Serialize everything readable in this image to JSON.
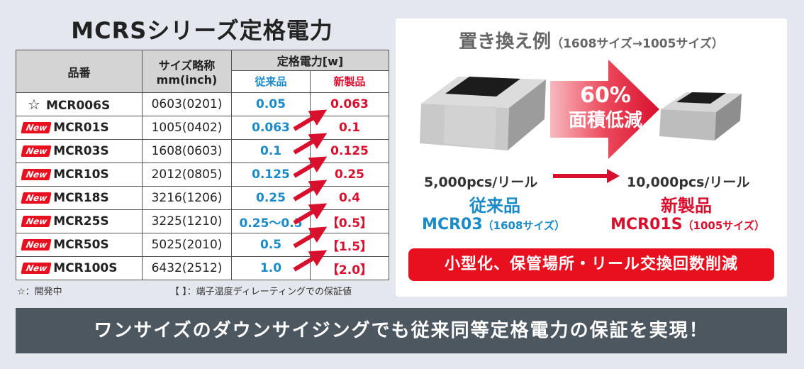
{
  "left": {
    "title": "MCRSシリーズ定格電力",
    "header": {
      "part": "品番",
      "size_line1": "サイズ略称",
      "size_line2": "mm(inch)",
      "rating": "定格電力[w]",
      "old": "従来品",
      "new": "新製品"
    },
    "new_badge": "New",
    "rows": [
      {
        "badge": "☆",
        "part": "MCR006S",
        "size": "0603(0201)",
        "old": "0.05",
        "new": "0.063"
      },
      {
        "badge": "New",
        "part": "MCR01S",
        "size": "1005(0402)",
        "old": "0.063",
        "new": "0.1"
      },
      {
        "badge": "New",
        "part": "MCR03S",
        "size": "1608(0603)",
        "old": "0.1",
        "new": "0.125"
      },
      {
        "badge": "New",
        "part": "MCR10S",
        "size": "2012(0805)",
        "old": "0.125",
        "new": "0.25"
      },
      {
        "badge": "New",
        "part": "MCR18S",
        "size": "3216(1206)",
        "old": "0.25",
        "new": "0.4"
      },
      {
        "badge": "New",
        "part": "MCR25S",
        "size": "3225(1210)",
        "old": "0.25～0.5",
        "new": "【0.5】"
      },
      {
        "badge": "New",
        "part": "MCR50S",
        "size": "5025(2010)",
        "old": "0.5",
        "new": "【1.5】"
      },
      {
        "badge": "New",
        "part": "MCR100S",
        "size": "6432(2512)",
        "old": "1.0",
        "new": "【2.0】"
      }
    ],
    "footnote_left": "☆：開発中",
    "footnote_right": "【 】：端子温度ディレーティングでの保証値"
  },
  "right": {
    "title_big": "置き換え例",
    "title_small": "（1608サイズ→1005サイズ）",
    "reduction_pct": "60%",
    "reduction_text": "面積低減",
    "qty_old": "5,000pcs/リール",
    "qty_new": "10,000pcs/リール",
    "old_label": "従来品",
    "old_part": "MCR03",
    "old_size": "（1608サイズ）",
    "new_label": "新製品",
    "new_part": "MCR01S",
    "new_size": "（1005サイズ）",
    "banner": "小型化、保管場所・リール交換回数削減"
  },
  "bottom_banner": "ワンサイズのダウンサイジングでも従来同等定格電力の保証を実現！",
  "colors": {
    "accent_red": "#e8101e",
    "blue": "#1a8ac8",
    "bar": "#4d5760",
    "background": "#e4e8ee"
  },
  "icons": {
    "row_arrow": "red-diagonal-arrow-icon",
    "chip": "chip-resistor-illustration",
    "big_arrow": "red-right-arrow-icon"
  }
}
